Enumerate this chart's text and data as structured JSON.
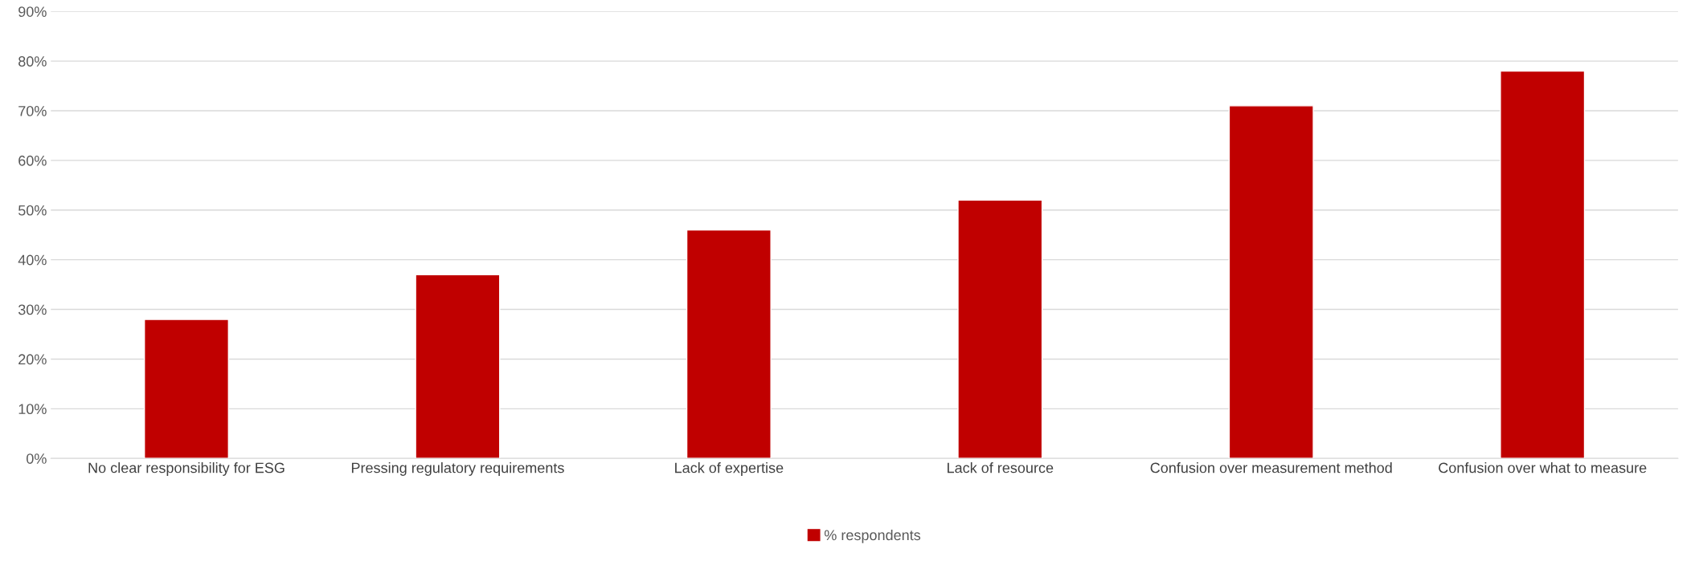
{
  "chart_data": {
    "type": "bar",
    "categories": [
      "No clear responsibility for ESG",
      "Pressing regulatory requirements",
      "Lack of expertise",
      "Lack of resource",
      "Confusion over measurement method",
      "Confusion over what to measure"
    ],
    "series": [
      {
        "name": "% respondents",
        "color": "#c00000",
        "values": [
          28,
          37,
          46,
          52,
          71,
          78
        ]
      }
    ],
    "ylim": [
      0,
      90
    ],
    "yticks": [
      {
        "value": 0,
        "label": "0%"
      },
      {
        "value": 10,
        "label": "10%"
      },
      {
        "value": 20,
        "label": "20%"
      },
      {
        "value": 30,
        "label": "30%"
      },
      {
        "value": 40,
        "label": "40%"
      },
      {
        "value": 50,
        "label": "50%"
      },
      {
        "value": 60,
        "label": "60%"
      },
      {
        "value": 70,
        "label": "70%"
      },
      {
        "value": 80,
        "label": "80%"
      },
      {
        "value": 90,
        "label": "90%"
      }
    ],
    "grid": "y",
    "legend": "bottom"
  }
}
